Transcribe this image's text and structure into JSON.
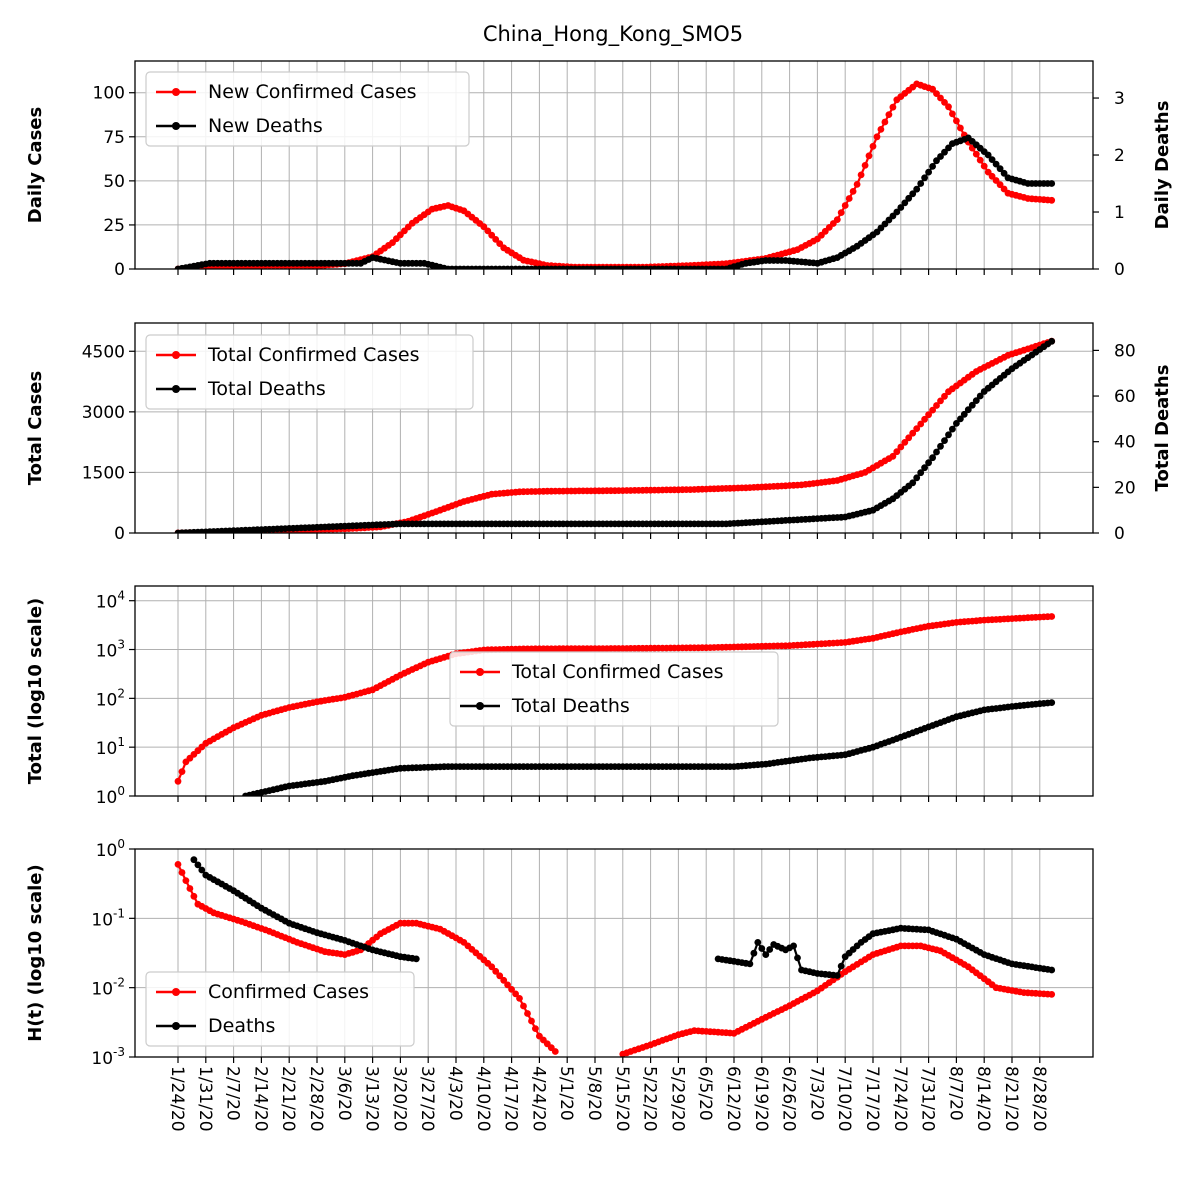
{
  "title": "China_Hong_Kong_SMO5",
  "colors": {
    "cases": "#ff0000",
    "deaths": "#000000",
    "grid": "#b0b0b0"
  },
  "x_tick_labels": [
    "1/24/20",
    "1/31/20",
    "2/7/20",
    "2/14/20",
    "2/21/20",
    "2/28/20",
    "3/6/20",
    "3/13/20",
    "3/20/20",
    "3/27/20",
    "4/3/20",
    "4/10/20",
    "4/17/20",
    "4/24/20",
    "5/1/20",
    "5/8/20",
    "5/15/20",
    "5/22/20",
    "5/29/20",
    "6/5/20",
    "6/12/20",
    "6/19/20",
    "6/26/20",
    "7/3/20",
    "7/10/20",
    "7/17/20",
    "7/24/20",
    "7/31/20",
    "8/7/20",
    "8/14/20",
    "8/21/20",
    "8/28/20"
  ],
  "chart_data": [
    {
      "type": "line",
      "ylabel": "Daily Cases",
      "ylabel_right": "Daily Deaths",
      "grid": true,
      "legend_position": "upper-left",
      "ylim": [
        0,
        118
      ],
      "ylim_right": [
        0,
        3.65
      ],
      "yticks": [
        0,
        25,
        50,
        75,
        100
      ],
      "yticks_right": [
        0,
        1,
        2,
        3
      ],
      "series": [
        {
          "name": "New Confirmed Cases",
          "axis": "left",
          "points": [
            [
              "1/24/20",
              0
            ],
            [
              "2/1/20",
              1
            ],
            [
              "2/15/20",
              2
            ],
            [
              "2/29/20",
              2
            ],
            [
              "3/6/20",
              3
            ],
            [
              "3/13/20",
              7
            ],
            [
              "3/18/20",
              15
            ],
            [
              "3/23/20",
              26
            ],
            [
              "3/28/20",
              34
            ],
            [
              "4/1/20",
              36
            ],
            [
              "4/5/20",
              33
            ],
            [
              "4/10/20",
              24
            ],
            [
              "4/15/20",
              12
            ],
            [
              "4/20/20",
              5
            ],
            [
              "4/26/20",
              2
            ],
            [
              "5/3/20",
              1
            ],
            [
              "5/20/20",
              1
            ],
            [
              "6/1/20",
              2
            ],
            [
              "6/10/20",
              3
            ],
            [
              "6/20/20",
              6
            ],
            [
              "6/28/20",
              11
            ],
            [
              "7/3/20",
              17
            ],
            [
              "7/8/20",
              28
            ],
            [
              "7/13/20",
              48
            ],
            [
              "7/18/20",
              75
            ],
            [
              "7/23/20",
              96
            ],
            [
              "7/28/20",
              105
            ],
            [
              "8/1/20",
              102
            ],
            [
              "8/5/20",
              92
            ],
            [
              "8/10/20",
              72
            ],
            [
              "8/15/20",
              55
            ],
            [
              "8/20/20",
              43
            ],
            [
              "8/25/20",
              40
            ],
            [
              "8/31/20",
              39
            ]
          ]
        },
        {
          "name": "New Deaths",
          "axis": "right",
          "points": [
            [
              "1/24/20",
              0
            ],
            [
              "2/1/20",
              0.1
            ],
            [
              "2/15/20",
              0.1
            ],
            [
              "3/1/20",
              0.1
            ],
            [
              "3/10/20",
              0.1
            ],
            [
              "3/13/20",
              0.2
            ],
            [
              "3/20/20",
              0.1
            ],
            [
              "3/26/20",
              0.1
            ],
            [
              "4/1/20",
              0
            ],
            [
              "5/15/20",
              0
            ],
            [
              "6/10/20",
              0
            ],
            [
              "6/15/20",
              0.1
            ],
            [
              "6/20/20",
              0.15
            ],
            [
              "6/25/20",
              0.15
            ],
            [
              "7/3/20",
              0.1
            ],
            [
              "7/8/20",
              0.2
            ],
            [
              "7/13/20",
              0.4
            ],
            [
              "7/18/20",
              0.65
            ],
            [
              "7/23/20",
              1.0
            ],
            [
              "7/28/20",
              1.4
            ],
            [
              "8/2/20",
              1.9
            ],
            [
              "8/6/20",
              2.2
            ],
            [
              "8/10/20",
              2.3
            ],
            [
              "8/15/20",
              2.0
            ],
            [
              "8/20/20",
              1.6
            ],
            [
              "8/25/20",
              1.5
            ],
            [
              "8/31/20",
              1.5
            ]
          ]
        }
      ]
    },
    {
      "type": "line",
      "ylabel": "Total Cases",
      "ylabel_right": "Total Deaths",
      "grid": true,
      "legend_position": "upper-left",
      "ylim": [
        0,
        5200
      ],
      "ylim_right": [
        0,
        92
      ],
      "yticks": [
        0,
        1500,
        3000,
        4500
      ],
      "yticks_right": [
        0,
        20,
        40,
        60,
        80
      ],
      "series": [
        {
          "name": "Total Confirmed Cases",
          "axis": "left",
          "points": [
            [
              "1/24/20",
              2
            ],
            [
              "2/7/20",
              30
            ],
            [
              "2/21/20",
              70
            ],
            [
              "3/6/20",
              105
            ],
            [
              "3/15/20",
              150
            ],
            [
              "3/22/20",
              290
            ],
            [
              "3/29/20",
              530
            ],
            [
              "4/5/20",
              780
            ],
            [
              "4/12/20",
              960
            ],
            [
              "4/19/20",
              1020
            ],
            [
              "4/26/20",
              1035
            ],
            [
              "5/15/20",
              1050
            ],
            [
              "6/1/20",
              1075
            ],
            [
              "6/15/20",
              1120
            ],
            [
              "6/29/20",
              1190
            ],
            [
              "7/8/20",
              1300
            ],
            [
              "7/15/20",
              1500
            ],
            [
              "7/22/20",
              1900
            ],
            [
              "7/29/20",
              2700
            ],
            [
              "8/5/20",
              3500
            ],
            [
              "8/12/20",
              4000
            ],
            [
              "8/20/20",
              4400
            ],
            [
              "8/31/20",
              4750
            ]
          ]
        },
        {
          "name": "Total Deaths",
          "axis": "right",
          "points": [
            [
              "1/24/20",
              0
            ],
            [
              "2/7/20",
              1
            ],
            [
              "2/21/20",
              2
            ],
            [
              "3/6/20",
              3
            ],
            [
              "3/20/20",
              4
            ],
            [
              "4/1/20",
              4
            ],
            [
              "5/15/20",
              4
            ],
            [
              "6/10/20",
              4
            ],
            [
              "6/20/20",
              5
            ],
            [
              "6/30/20",
              6
            ],
            [
              "7/10/20",
              7
            ],
            [
              "7/17/20",
              10
            ],
            [
              "7/22/20",
              15
            ],
            [
              "7/27/20",
              22
            ],
            [
              "8/1/20",
              33
            ],
            [
              "8/7/20",
              48
            ],
            [
              "8/14/20",
              62
            ],
            [
              "8/21/20",
              72
            ],
            [
              "8/31/20",
              84
            ]
          ]
        }
      ]
    },
    {
      "type": "line",
      "ylabel": "Total (log10 scale)",
      "log_scale": true,
      "grid": true,
      "legend_position": "center",
      "ylim": [
        1,
        20000
      ],
      "yticks": [
        1,
        10,
        100,
        1000,
        10000
      ],
      "series": [
        {
          "name": "Total Confirmed Cases",
          "points": [
            [
              "1/24/20",
              2
            ],
            [
              "1/26/20",
              5
            ],
            [
              "1/31/20",
              12
            ],
            [
              "2/7/20",
              25
            ],
            [
              "2/14/20",
              45
            ],
            [
              "2/21/20",
              65
            ],
            [
              "2/28/20",
              85
            ],
            [
              "3/6/20",
              105
            ],
            [
              "3/13/20",
              150
            ],
            [
              "3/20/20",
              300
            ],
            [
              "3/27/20",
              550
            ],
            [
              "4/3/20",
              820
            ],
            [
              "4/10/20",
              980
            ],
            [
              "4/20/20",
              1030
            ],
            [
              "5/15/20",
              1050
            ],
            [
              "6/5/20",
              1090
            ],
            [
              "6/26/20",
              1200
            ],
            [
              "7/10/20",
              1400
            ],
            [
              "7/17/20",
              1700
            ],
            [
              "7/24/20",
              2300
            ],
            [
              "7/31/20",
              3000
            ],
            [
              "8/7/20",
              3600
            ],
            [
              "8/14/20",
              4000
            ],
            [
              "8/21/20",
              4300
            ],
            [
              "8/31/20",
              4750
            ]
          ]
        },
        {
          "name": "Total Deaths",
          "points": [
            [
              "2/10/20",
              1
            ],
            [
              "2/21/20",
              1.6
            ],
            [
              "3/1/20",
              2
            ],
            [
              "3/8/20",
              2.6
            ],
            [
              "3/20/20",
              3.7
            ],
            [
              "4/1/20",
              4
            ],
            [
              "6/12/20",
              4
            ],
            [
              "6/20/20",
              4.5
            ],
            [
              "7/1/20",
              6
            ],
            [
              "7/10/20",
              7
            ],
            [
              "7/17/20",
              10
            ],
            [
              "7/24/20",
              16
            ],
            [
              "7/31/20",
              26
            ],
            [
              "8/7/20",
              42
            ],
            [
              "8/14/20",
              58
            ],
            [
              "8/21/20",
              68
            ],
            [
              "8/31/20",
              82
            ]
          ]
        }
      ]
    },
    {
      "type": "line",
      "ylabel": "H(t) (log10 scale)",
      "log_scale": true,
      "grid": true,
      "legend_position": "lower-left",
      "ylim": [
        0.001,
        1
      ],
      "yticks": [
        0.001,
        0.01,
        0.1,
        1
      ],
      "series": [
        {
          "name": "Confirmed Cases",
          "segments": [
            [
              [
                "1/24/20",
                0.6
              ],
              [
                "1/26/20",
                0.35
              ],
              [
                "1/29/20",
                0.16
              ],
              [
                "2/2/20",
                0.12
              ],
              [
                "2/9/20",
                0.09
              ],
              [
                "2/16/20",
                0.065
              ],
              [
                "2/23/20",
                0.045
              ],
              [
                "3/1/20",
                0.033
              ],
              [
                "3/6/20",
                0.03
              ],
              [
                "3/10/20",
                0.035
              ],
              [
                "3/15/20",
                0.06
              ],
              [
                "3/20/20",
                0.085
              ],
              [
                "3/24/20",
                0.085
              ],
              [
                "3/30/20",
                0.07
              ],
              [
                "4/5/20",
                0.045
              ],
              [
                "4/12/20",
                0.02
              ],
              [
                "4/19/20",
                0.007
              ],
              [
                "4/24/20",
                0.002
              ],
              [
                "4/28/20",
                0.0012
              ]
            ],
            [
              [
                "5/15/20",
                0.0011
              ],
              [
                "5/22/20",
                0.0015
              ],
              [
                "5/29/20",
                0.0021
              ],
              [
                "6/2/20",
                0.0024
              ],
              [
                "6/7/20",
                0.0023
              ],
              [
                "6/12/20",
                0.0022
              ],
              [
                "6/19/20",
                0.0035
              ],
              [
                "6/26/20",
                0.0055
              ],
              [
                "7/3/20",
                0.009
              ],
              [
                "7/10/20",
                0.017
              ],
              [
                "7/17/20",
                0.03
              ],
              [
                "7/24/20",
                0.04
              ],
              [
                "7/29/20",
                0.04
              ],
              [
                "8/3/20",
                0.034
              ],
              [
                "8/10/20",
                0.02
              ],
              [
                "8/17/20",
                0.01
              ],
              [
                "8/24/20",
                0.0085
              ],
              [
                "8/31/20",
                0.008
              ]
            ]
          ]
        },
        {
          "name": "Deaths",
          "segments": [
            [
              [
                "1/28/20",
                0.7
              ],
              [
                "1/31/20",
                0.42
              ],
              [
                "2/7/20",
                0.25
              ],
              [
                "2/14/20",
                0.14
              ],
              [
                "2/21/20",
                0.085
              ],
              [
                "2/28/20",
                0.062
              ],
              [
                "3/6/20",
                0.048
              ],
              [
                "3/13/20",
                0.035
              ],
              [
                "3/20/20",
                0.028
              ],
              [
                "3/24/20",
                0.026
              ]
            ],
            [
              [
                "6/8/20",
                0.026
              ],
              [
                "6/12/20",
                0.024
              ],
              [
                "6/16/20",
                0.022
              ],
              [
                "6/18/20",
                0.045
              ],
              [
                "6/20/20",
                0.03
              ],
              [
                "6/22/20",
                0.042
              ],
              [
                "6/25/20",
                0.035
              ],
              [
                "6/27/20",
                0.04
              ],
              [
                "6/29/20",
                0.018
              ],
              [
                "7/3/20",
                0.016
              ],
              [
                "7/8/20",
                0.015
              ],
              [
                "7/10/20",
                0.028
              ],
              [
                "7/14/20",
                0.045
              ],
              [
                "7/17/20",
                0.06
              ],
              [
                "7/24/20",
                0.072
              ],
              [
                "7/31/20",
                0.068
              ],
              [
                "8/7/20",
                0.05
              ],
              [
                "8/14/20",
                0.03
              ],
              [
                "8/21/20",
                0.022
              ],
              [
                "8/31/20",
                0.018
              ]
            ]
          ]
        }
      ]
    }
  ]
}
